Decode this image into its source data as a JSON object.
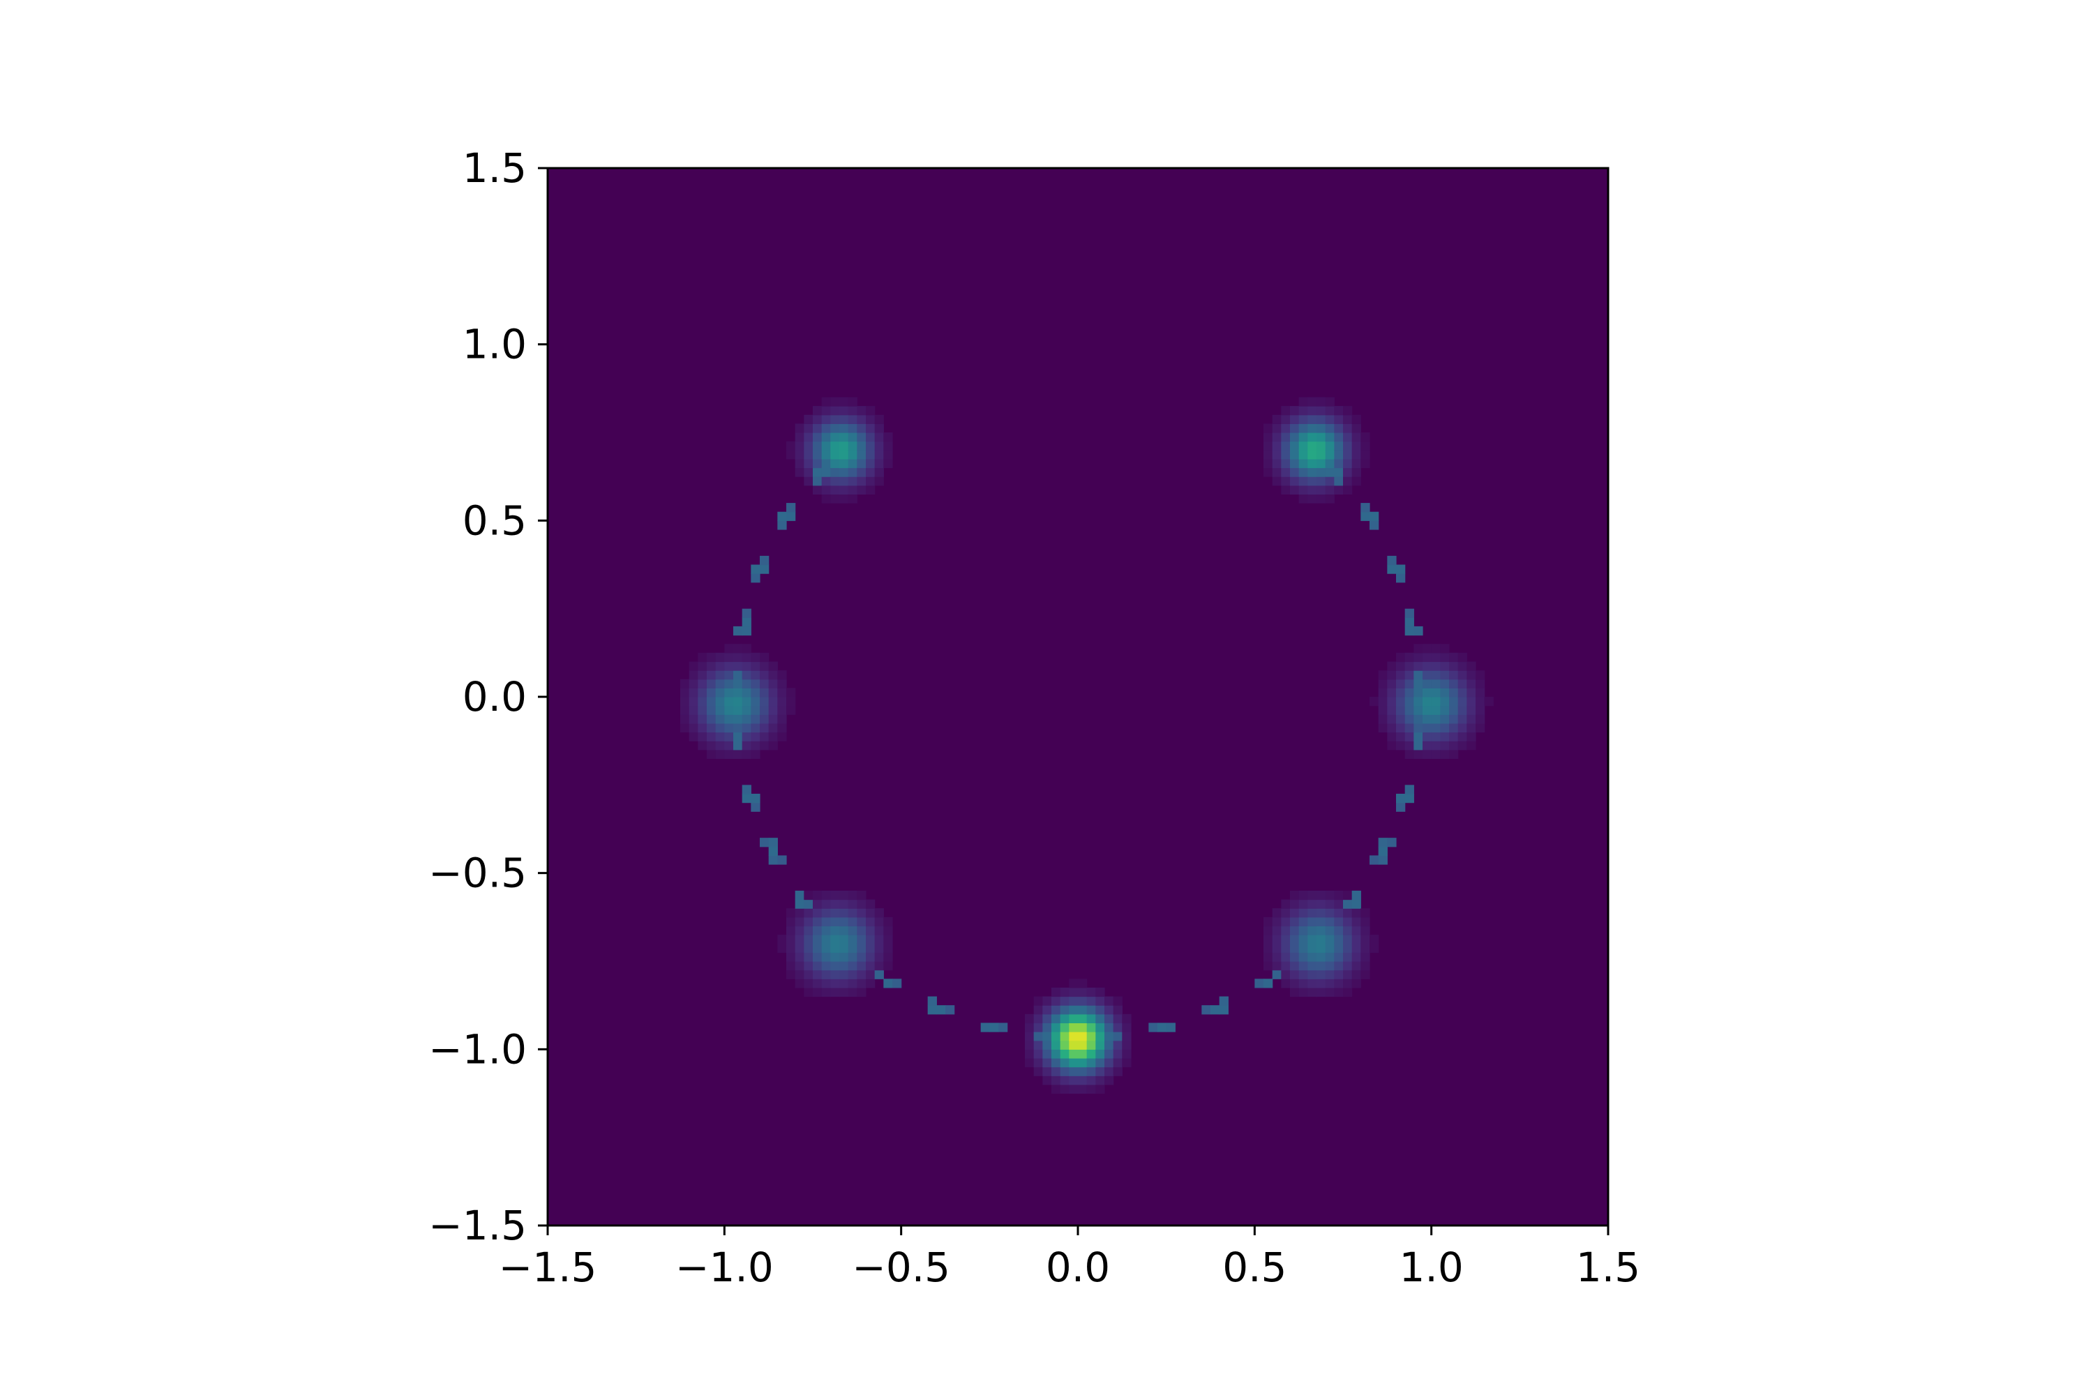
{
  "chart_data": {
    "type": "heatmap",
    "title": "",
    "xlabel": "",
    "ylabel": "",
    "xlim": [
      -1.5,
      1.5
    ],
    "ylim": [
      -1.5,
      1.5
    ],
    "grid": false,
    "colormap": "viridis",
    "background_value": 0,
    "xticks": [
      -1.5,
      -1.0,
      -0.5,
      0.0,
      0.5,
      1.0,
      1.5
    ],
    "yticks": [
      -1.5,
      -1.0,
      -0.5,
      0.0,
      0.5,
      1.0,
      1.5
    ],
    "xtick_labels": [
      "−1.5",
      "−1.0",
      "−0.5",
      "0.0",
      "0.5",
      "1.0",
      "1.5"
    ],
    "ytick_labels": [
      "−1.5",
      "−1.0",
      "−0.5",
      "0.0",
      "0.5",
      "1.0",
      "1.5"
    ],
    "hotspots": [
      {
        "x": -0.67,
        "y": 0.7,
        "intensity": 0.55,
        "spread": 0.06
      },
      {
        "x": 0.67,
        "y": 0.7,
        "intensity": 0.62,
        "spread": 0.06
      },
      {
        "x": -0.97,
        "y": -0.02,
        "intensity": 0.45,
        "spread": 0.07
      },
      {
        "x": 1.0,
        "y": -0.02,
        "intensity": 0.45,
        "spread": 0.07
      },
      {
        "x": -0.68,
        "y": -0.7,
        "intensity": 0.42,
        "spread": 0.07
      },
      {
        "x": 0.68,
        "y": -0.7,
        "intensity": 0.42,
        "spread": 0.07
      },
      {
        "x": 0.0,
        "y": -0.97,
        "intensity": 0.98,
        "spread": 0.06
      }
    ],
    "ring": {
      "radius": 0.97,
      "intensity": 0.35
    }
  }
}
